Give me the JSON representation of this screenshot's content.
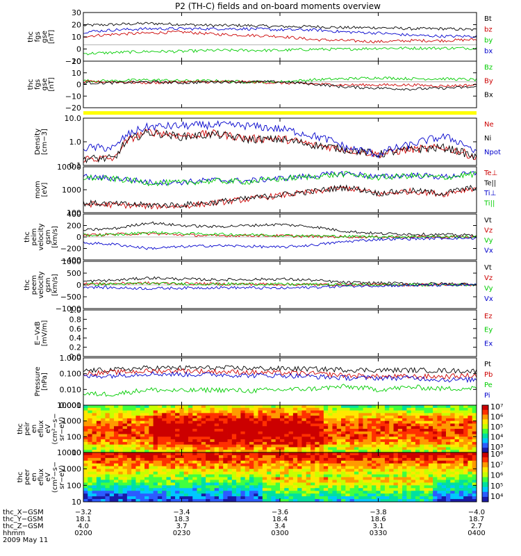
{
  "title": "P2 (TH-C) fields and on-board moments overview",
  "chart_data": [
    {
      "type": "line",
      "ylabel": [
        "thc",
        "fgs",
        "gse",
        "[nT]"
      ],
      "ylim": [
        -15,
        30
      ],
      "yscale": "linear",
      "yticks": [
        "30",
        "20",
        "10",
        "0",
        "−10"
      ],
      "series": [
        {
          "name": "Bt",
          "color": "#000000",
          "values": [
            18,
            19,
            20,
            19,
            18,
            18,
            17,
            17,
            16,
            16,
            15,
            15,
            14
          ]
        },
        {
          "name": "bz",
          "color": "#cc0000",
          "values": [
            8,
            10,
            11,
            12,
            10,
            9,
            8,
            5,
            4,
            3,
            4,
            4,
            5
          ]
        },
        {
          "name": "by",
          "color": "#00cc00",
          "values": [
            -8,
            -7,
            -6,
            -6,
            -5,
            -5,
            -5,
            -4,
            -4,
            -3,
            -3,
            -3,
            -3
          ]
        },
        {
          "name": "bx",
          "color": "#0000cc",
          "values": [
            12,
            14,
            15,
            15,
            15,
            15,
            14,
            14,
            12,
            11,
            9,
            8,
            8
          ]
        }
      ]
    },
    {
      "type": "line",
      "ylabel": [
        "thc",
        "fgs",
        "gse",
        "[nT]"
      ],
      "ylim": [
        -25,
        20
      ],
      "yscale": "linear",
      "yticks": [
        "20",
        "10",
        "0",
        "−10",
        "−20"
      ],
      "series": [
        {
          "name": "Bz",
          "color": "#00cc00",
          "values": [
            1,
            1,
            2,
            1,
            1,
            0,
            0,
            2,
            3,
            4,
            3,
            3,
            2
          ]
        },
        {
          "name": "By",
          "color": "#cc0000",
          "values": [
            0,
            0,
            -1,
            0,
            0,
            0,
            -1,
            -2,
            -3,
            -3,
            -3,
            -4,
            -3
          ]
        },
        {
          "name": "Bx",
          "color": "#000000",
          "values": [
            -1,
            -1,
            0,
            -1,
            0,
            0,
            0,
            -2,
            -5,
            -6,
            -7,
            -6,
            -5
          ]
        }
      ]
    },
    {
      "type": "line",
      "ylabel": [
        "Density",
        "[cm−3]"
      ],
      "ylim": [
        0.1,
        12
      ],
      "yscale": "log",
      "yticks": [
        "10.0",
        "1.0",
        "0.1"
      ],
      "series": [
        {
          "name": "Ne",
          "color": "#cc0000",
          "values": [
            0.2,
            0.2,
            3.0,
            2.0,
            2.5,
            1.5,
            1.5,
            0.8,
            0.5,
            0.3,
            0.5,
            0.6,
            0.2
          ]
        },
        {
          "name": "Ni",
          "color": "#000000",
          "values": [
            0.2,
            0.2,
            2.8,
            1.8,
            2.3,
            1.4,
            1.4,
            0.8,
            0.5,
            0.3,
            0.5,
            0.6,
            0.2
          ]
        },
        {
          "name": "Npot",
          "color": "#0000cc",
          "values": [
            0.6,
            0.6,
            5.0,
            5.5,
            6.0,
            5.5,
            4.0,
            2.0,
            0.6,
            0.3,
            0.8,
            1.8,
            0.3
          ]
        }
      ]
    },
    {
      "type": "line",
      "ylabel": [
        "mom",
        "[eV]"
      ],
      "ylim": [
        25,
        12000
      ],
      "yscale": "log",
      "yticks": [
        "10000",
        "1000",
        "100"
      ],
      "series": [
        {
          "name": "Te⊥",
          "color": "#cc0000",
          "values": [
            80,
            70,
            60,
            60,
            90,
            150,
            250,
            400,
            700,
            300,
            450,
            300,
            700
          ]
        },
        {
          "name": "Te||",
          "color": "#000000",
          "values": [
            90,
            80,
            70,
            70,
            100,
            160,
            270,
            430,
            750,
            330,
            480,
            330,
            750
          ]
        },
        {
          "name": "Ti⊥",
          "color": "#0000cc",
          "values": [
            3000,
            2500,
            1500,
            1500,
            2000,
            1800,
            2500,
            3500,
            5000,
            3000,
            4000,
            3000,
            5000
          ]
        },
        {
          "name": "Ti||",
          "color": "#00cc00",
          "values": [
            2800,
            2300,
            1400,
            1400,
            1800,
            1600,
            2300,
            3200,
            4500,
            2800,
            3600,
            2800,
            4500
          ]
        }
      ]
    },
    {
      "type": "line",
      "ylabel": [
        "thc",
        "peim",
        "velocity",
        "gsm",
        "[km/s]"
      ],
      "ylim": [
        -400,
        400
      ],
      "yscale": "linear",
      "yticks": [
        "400",
        "200",
        "0",
        "−200",
        "−400"
      ],
      "series": [
        {
          "name": "Vt",
          "color": "#000000",
          "values": [
            120,
            150,
            250,
            200,
            180,
            200,
            220,
            180,
            100,
            60,
            50,
            40,
            30
          ]
        },
        {
          "name": "Vz",
          "color": "#cc0000",
          "values": [
            30,
            50,
            60,
            40,
            20,
            30,
            20,
            10,
            5,
            0,
            0,
            0,
            0
          ]
        },
        {
          "name": "Vy",
          "color": "#00cc00",
          "values": [
            30,
            40,
            80,
            60,
            50,
            40,
            30,
            20,
            10,
            5,
            5,
            5,
            0
          ]
        },
        {
          "name": "Vx",
          "color": "#0000cc",
          "values": [
            -100,
            -130,
            -200,
            -170,
            -150,
            -160,
            -180,
            -140,
            -80,
            -40,
            -30,
            -20,
            -20
          ]
        }
      ]
    },
    {
      "type": "line",
      "ylabel": [
        "thc",
        "peem",
        "velocity",
        "gsm",
        "[km/s]"
      ],
      "ylim": [
        -1000,
        1000
      ],
      "yscale": "linear",
      "yticks": [
        "1000",
        "500",
        "0",
        "−500",
        "−1000"
      ],
      "series": [
        {
          "name": "Vt",
          "color": "#000000",
          "values": [
            150,
            200,
            300,
            250,
            220,
            230,
            250,
            200,
            100,
            80,
            60,
            50,
            40
          ]
        },
        {
          "name": "Vz",
          "color": "#cc0000",
          "values": [
            40,
            60,
            80,
            60,
            40,
            40,
            30,
            20,
            10,
            5,
            5,
            5,
            5
          ]
        },
        {
          "name": "Vy",
          "color": "#00cc00",
          "values": [
            30,
            40,
            60,
            50,
            40,
            40,
            30,
            20,
            10,
            5,
            5,
            5,
            5
          ]
        },
        {
          "name": "Vx",
          "color": "#0000cc",
          "values": [
            -80,
            -120,
            -150,
            -130,
            -110,
            -120,
            -140,
            -100,
            -50,
            -30,
            -20,
            -10,
            -10
          ]
        }
      ]
    },
    {
      "type": "line",
      "ylabel": [
        "E−VxB",
        "[mV/m]"
      ],
      "ylim": [
        0,
        1
      ],
      "yscale": "linear",
      "yticks": [
        "1.0",
        "0.8",
        "0.6",
        "0.4",
        "0.2",
        "0.0"
      ],
      "series": [
        {
          "name": "Ez",
          "color": "#cc0000",
          "values": []
        },
        {
          "name": "Ey",
          "color": "#00cc00",
          "values": []
        },
        {
          "name": "Ex",
          "color": "#0000cc",
          "values": []
        }
      ]
    },
    {
      "type": "line",
      "ylabel": [
        "Pressure",
        "[nPa]"
      ],
      "ylim": [
        0.0005,
        1.0
      ],
      "yscale": "log",
      "yticks": [
        "1.000",
        "0.100",
        "0.010",
        "0.001"
      ],
      "series": [
        {
          "name": "Pt",
          "color": "#000000",
          "values": [
            0.13,
            0.15,
            0.2,
            0.2,
            0.2,
            0.19,
            0.18,
            0.17,
            0.15,
            0.14,
            0.14,
            0.13,
            0.12
          ]
        },
        {
          "name": "Pb",
          "color": "#cc0000",
          "values": [
            0.08,
            0.1,
            0.12,
            0.13,
            0.11,
            0.1,
            0.09,
            0.08,
            0.06,
            0.05,
            0.05,
            0.05,
            0.06
          ]
        },
        {
          "name": "Pe",
          "color": "#00cc00",
          "values": [
            0.003,
            0.003,
            0.006,
            0.005,
            0.006,
            0.005,
            0.006,
            0.007,
            0.01,
            0.006,
            0.009,
            0.007,
            0.008
          ]
        },
        {
          "name": "Pi",
          "color": "#0000cc",
          "values": [
            0.05,
            0.06,
            0.08,
            0.07,
            0.07,
            0.06,
            0.06,
            0.05,
            0.04,
            0.04,
            0.04,
            0.03,
            0.03
          ]
        }
      ]
    },
    {
      "type": "heatmap",
      "ylabel": [
        "thc",
        "peir",
        "en",
        "eflux",
        "eV",
        "(cm²−s−",
        "sr−eV)"
      ],
      "ylim": [
        8,
        15000
      ],
      "yscale": "log",
      "yticks": [
        "10000",
        "1000",
        "100",
        "10"
      ],
      "colorbar_ticks": [
        "10⁷",
        "10⁶",
        "10⁵",
        "10⁴",
        "10³"
      ]
    },
    {
      "type": "heatmap",
      "ylabel": [
        "thc",
        "peer",
        "en",
        "eflux",
        "eV",
        "(cm²−s−",
        "sr−eV)"
      ],
      "ylim": [
        8,
        15000
      ],
      "yscale": "log",
      "yticks": [
        "10000",
        "1000",
        "100",
        "10"
      ],
      "colorbar_ticks": [
        "10⁸",
        "10⁷",
        "10⁶",
        "10⁵",
        "10⁴"
      ]
    }
  ],
  "x_axis": {
    "tick_labels": [
      "0200",
      "0230",
      "0300",
      "0330",
      "0400"
    ],
    "rows": [
      {
        "label": "thc_X−GSM",
        "values": [
          "−3.2",
          "−3.4",
          "−3.6",
          "−3.8",
          "−4.0"
        ]
      },
      {
        "label": "thc_Y−GSM",
        "values": [
          "18.1",
          "18.3",
          "18.4",
          "18.6",
          "18.7"
        ]
      },
      {
        "label": "thc_Z−GSM",
        "values": [
          "4.0",
          "3.7",
          "3.4",
          "3.1",
          "2.7"
        ]
      },
      {
        "label": "hhmm",
        "values": [
          "0200",
          "0230",
          "0300",
          "0330",
          "0400"
        ]
      }
    ],
    "date": "2009 May 11"
  }
}
